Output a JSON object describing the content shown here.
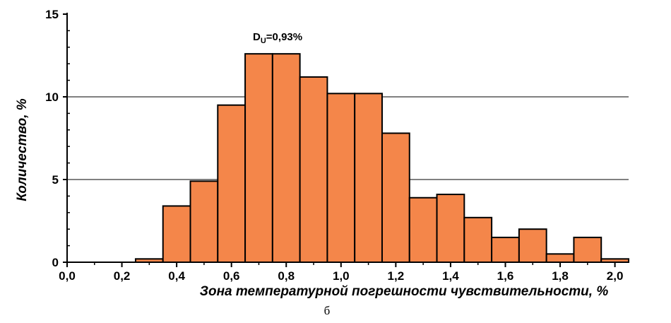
{
  "chart_data": {
    "type": "bar",
    "xlabel": "Зона температурной погрешности чувствительности, %",
    "ylabel": "Количество, %",
    "annotation": {
      "main": "D",
      "sub": "U",
      "value": "=0,93%"
    },
    "caption": "б",
    "bin_width": 0.1,
    "bins": [
      {
        "x": 0.0,
        "value": 0
      },
      {
        "x": 0.1,
        "value": 0
      },
      {
        "x": 0.2,
        "value": 0
      },
      {
        "x": 0.3,
        "value": 0.2
      },
      {
        "x": 0.4,
        "value": 3.4
      },
      {
        "x": 0.5,
        "value": 4.9
      },
      {
        "x": 0.6,
        "value": 9.5
      },
      {
        "x": 0.7,
        "value": 12.6
      },
      {
        "x": 0.8,
        "value": 12.6
      },
      {
        "x": 0.9,
        "value": 11.2
      },
      {
        "x": 1.0,
        "value": 10.2
      },
      {
        "x": 1.1,
        "value": 10.2
      },
      {
        "x": 1.2,
        "value": 7.8
      },
      {
        "x": 1.3,
        "value": 3.9
      },
      {
        "x": 1.4,
        "value": 4.1
      },
      {
        "x": 1.5,
        "value": 2.7
      },
      {
        "x": 1.6,
        "value": 1.5
      },
      {
        "x": 1.7,
        "value": 2.0
      },
      {
        "x": 1.8,
        "value": 0.5
      },
      {
        "x": 1.9,
        "value": 1.5
      },
      {
        "x": 2.0,
        "value": 0.2
      }
    ],
    "xlim": [
      0,
      2.05
    ],
    "ylim": [
      0,
      15
    ],
    "xticks": [
      "0,0",
      "0,2",
      "0,4",
      "0,6",
      "0,8",
      "1,0",
      "1,2",
      "1,4",
      "1,6",
      "1,8",
      "2,0"
    ],
    "yticks": [
      "0",
      "5",
      "10",
      "15"
    ],
    "gridlines_y": [
      5,
      10
    ],
    "bar_color": "#F4864A",
    "edge_color": "#000000",
    "grid": true,
    "legend": "none"
  }
}
